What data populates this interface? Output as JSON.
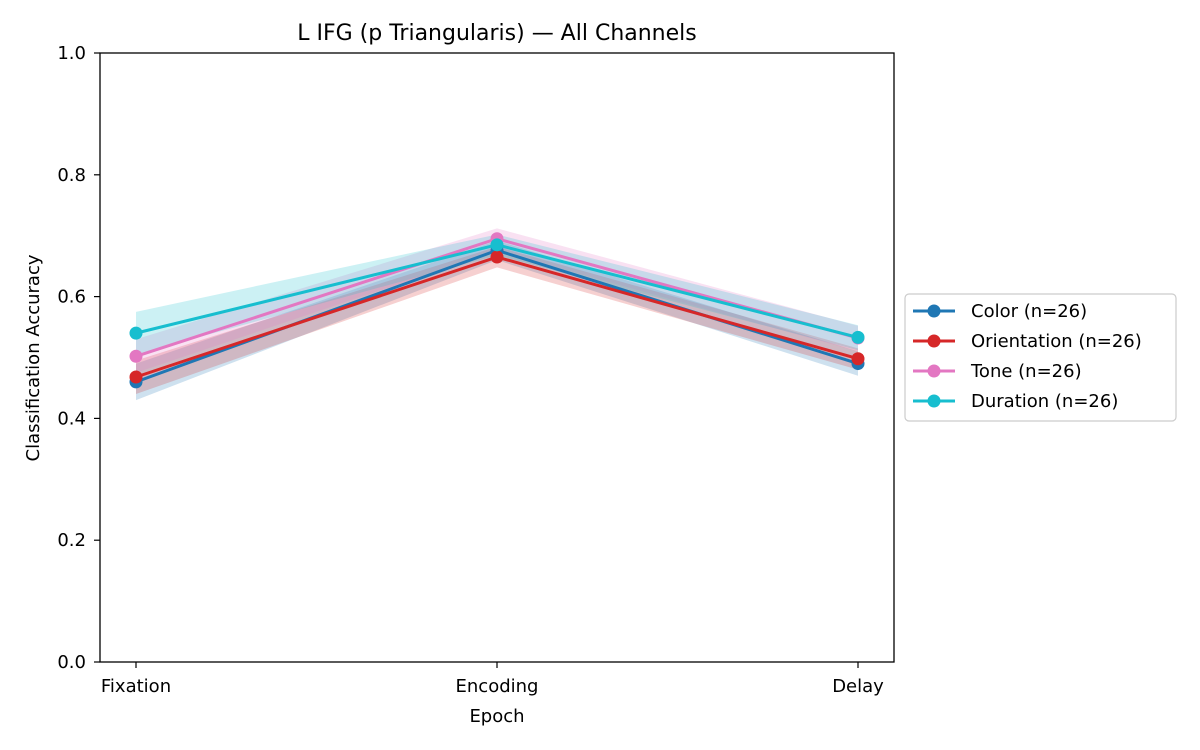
{
  "chart_data": {
    "type": "line",
    "title": "L IFG (p Triangularis) — All Channels",
    "xlabel": "Epoch",
    "ylabel": "Classification Accuracy",
    "categories": [
      "Fixation",
      "Encoding",
      "Delay"
    ],
    "ylim": [
      0,
      1.0
    ],
    "yticks": [
      "0.0",
      "0.2",
      "0.4",
      "0.6",
      "0.8",
      "1.0"
    ],
    "grid": false,
    "legend_position": "right, outside plot",
    "series": [
      {
        "name": "Color (n=26)",
        "color": "#1f77b4",
        "values": [
          0.46,
          0.676,
          0.49
        ],
        "lower": [
          0.43,
          0.66,
          0.47
        ],
        "upper": [
          0.49,
          0.692,
          0.51
        ]
      },
      {
        "name": "Orientation (n=26)",
        "color": "#d62728",
        "values": [
          0.468,
          0.665,
          0.498
        ],
        "lower": [
          0.44,
          0.648,
          0.48
        ],
        "upper": [
          0.495,
          0.682,
          0.515
        ]
      },
      {
        "name": "Tone (n=26)",
        "color": "#e377c2",
        "values": [
          0.502,
          0.695,
          0.532
        ],
        "lower": [
          0.475,
          0.675,
          0.51
        ],
        "upper": [
          0.53,
          0.712,
          0.552
        ]
      },
      {
        "name": "Duration (n=26)",
        "color": "#17becf",
        "values": [
          0.54,
          0.685,
          0.533
        ],
        "lower": [
          0.505,
          0.668,
          0.512
        ],
        "upper": [
          0.575,
          0.702,
          0.553
        ]
      }
    ]
  }
}
